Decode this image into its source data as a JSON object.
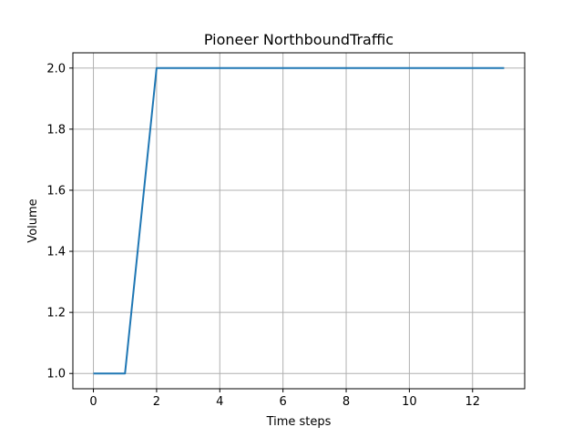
{
  "chart_data": {
    "type": "line",
    "title": "Pioneer NorthboundTraffic",
    "xlabel": "Time steps",
    "ylabel": "Volume",
    "xlim": [
      -0.65,
      13.65
    ],
    "ylim": [
      0.95,
      2.05
    ],
    "xticks": [
      0,
      2,
      4,
      6,
      8,
      10,
      12
    ],
    "xtick_labels": [
      "0",
      "2",
      "4",
      "6",
      "8",
      "10",
      "12"
    ],
    "yticks": [
      1.0,
      1.2,
      1.4,
      1.6,
      1.8,
      2.0
    ],
    "ytick_labels": [
      "1.0",
      "1.2",
      "1.4",
      "1.6",
      "1.8",
      "2.0"
    ],
    "grid": true,
    "series": [
      {
        "color": "#1f77b4",
        "x": [
          0,
          1,
          2,
          3,
          4,
          5,
          6,
          7,
          8,
          9,
          10,
          11,
          12,
          13
        ],
        "y": [
          1.0,
          1.0,
          2.0,
          2.0,
          2.0,
          2.0,
          2.0,
          2.0,
          2.0,
          2.0,
          2.0,
          2.0,
          2.0,
          2.0
        ]
      }
    ]
  }
}
